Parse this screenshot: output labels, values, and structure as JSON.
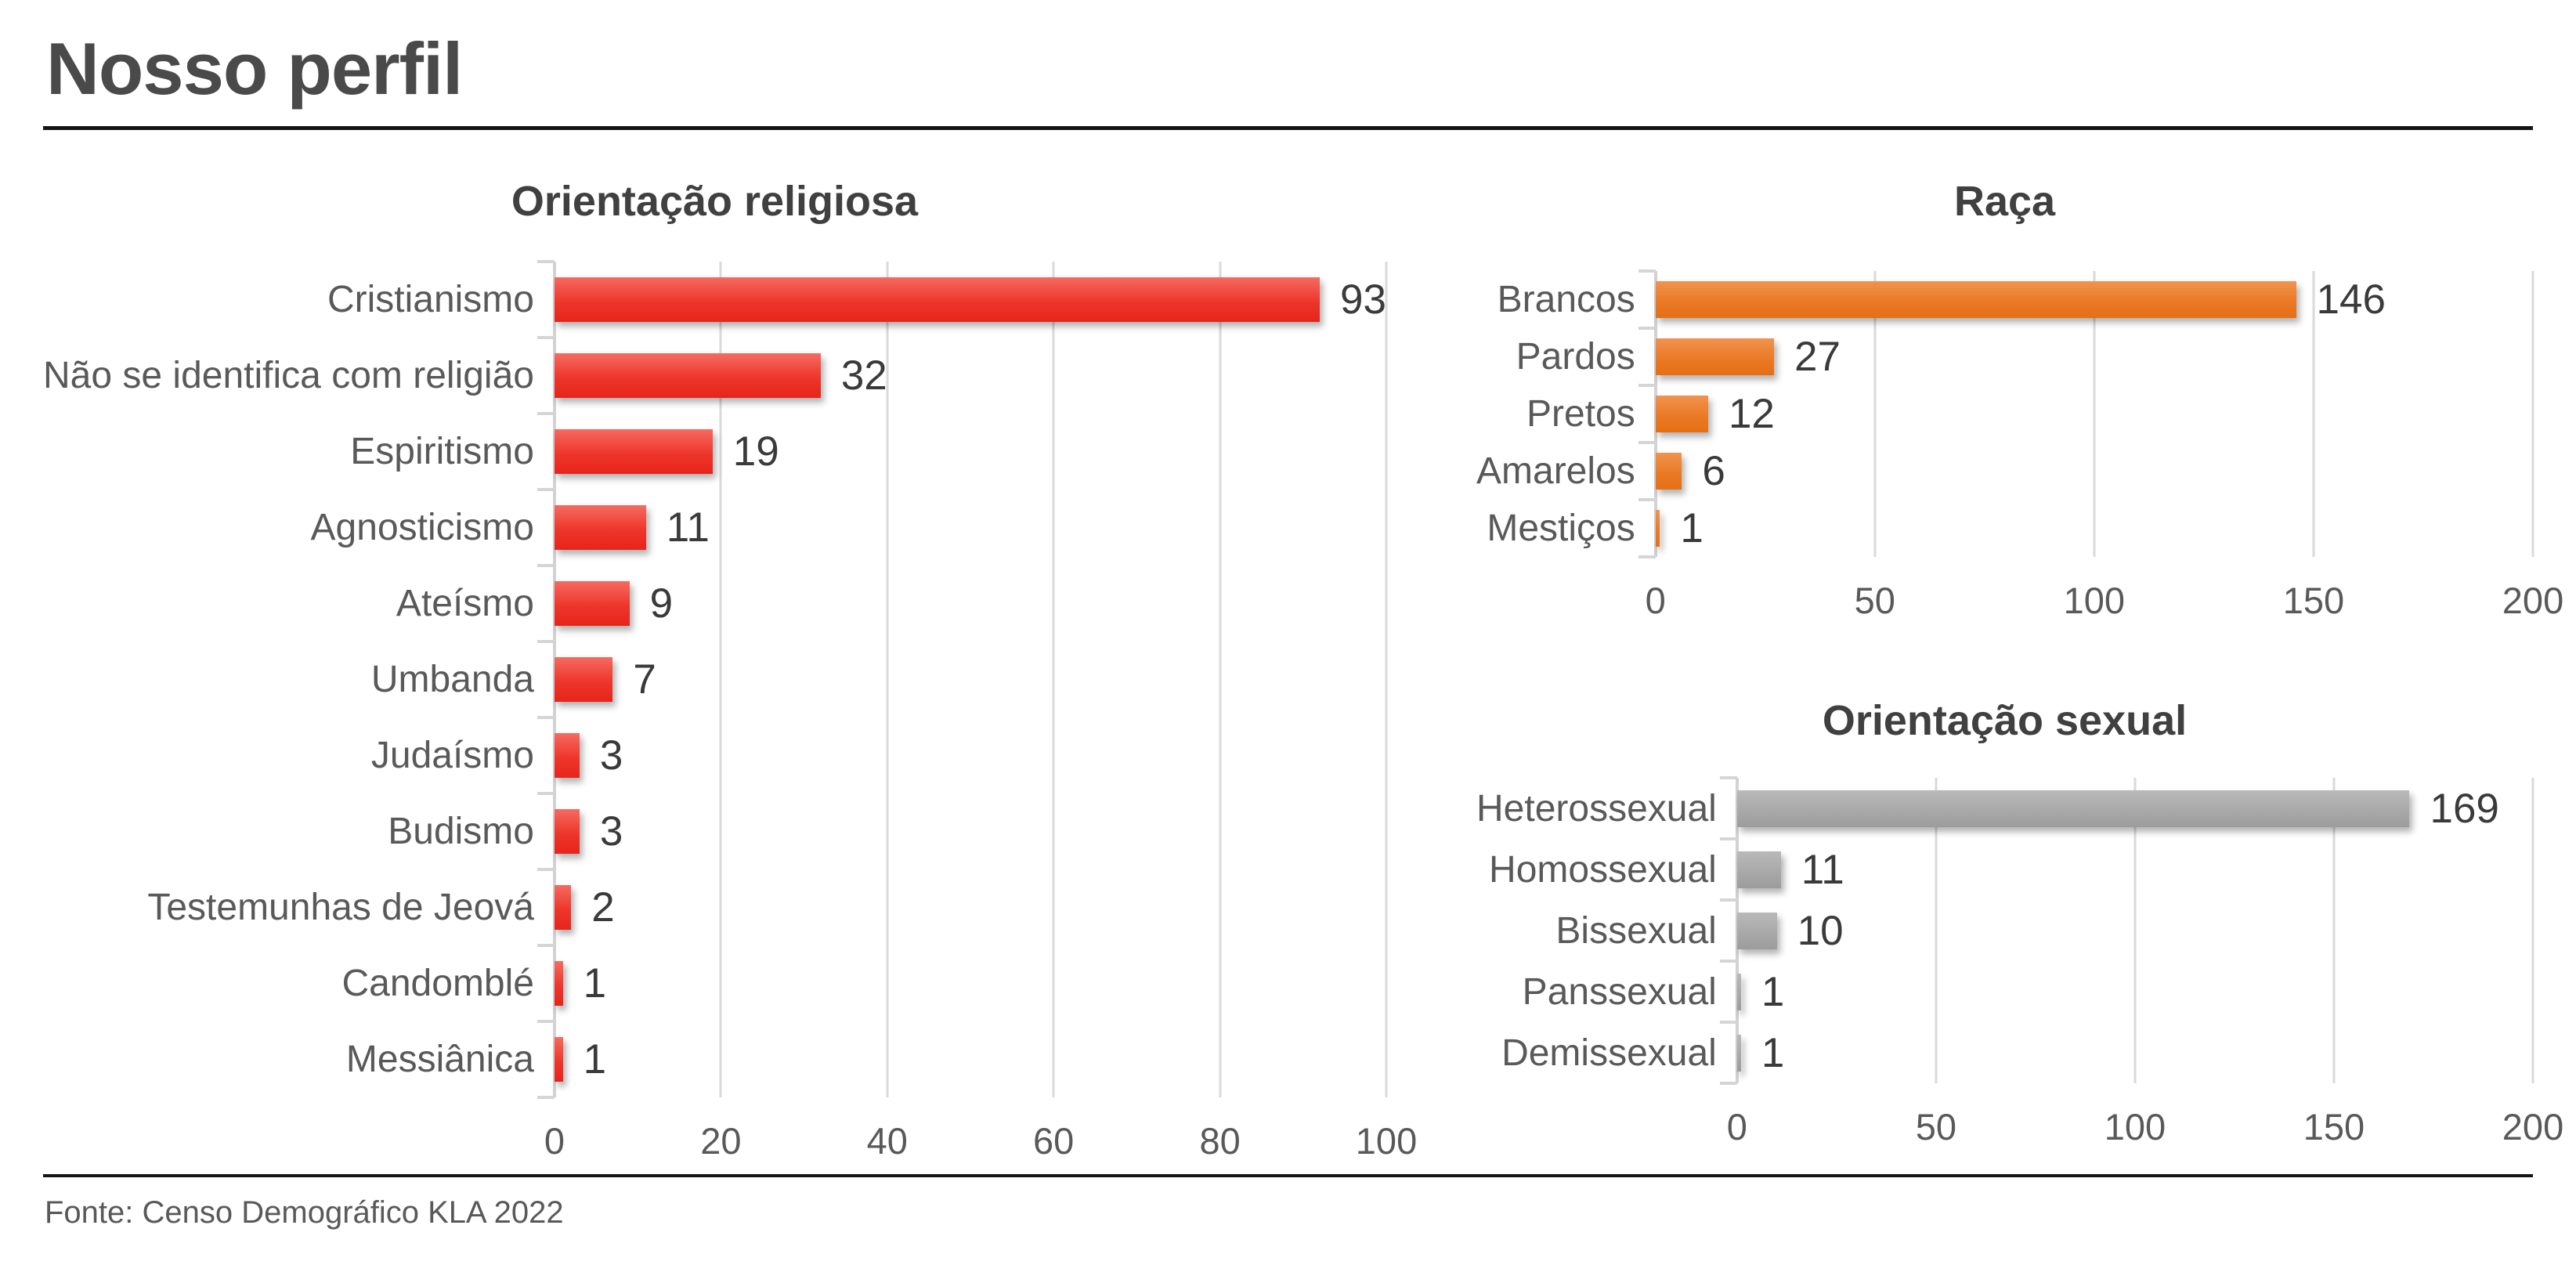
{
  "header": {
    "title": "Nosso perfil"
  },
  "footer": {
    "source": "Fonte: Censo Demográfico KLA 2022"
  },
  "colors": {
    "religion_bar": "#ED362C",
    "race_bar": "#ED7D31",
    "sexual_orientation_bar": "#A6A6A6",
    "gridline": "#D9D9D9",
    "category_text": "#595959",
    "value_text": "#3A3A3A",
    "title_text": "#404040",
    "page_title_text": "#4A4A4A"
  },
  "chart_data": [
    {
      "type": "bar",
      "orientation": "horizontal",
      "title": "Orientação religiosa",
      "categories": [
        "Cristianismo",
        "Não se identifica com religião",
        "Espiritismo",
        "Agnosticismo",
        "Ateísmo",
        "Umbanda",
        "Judaísmo",
        "Budismo",
        "Testemunhas de Jeová",
        "Candomblé",
        "Messiânica"
      ],
      "values": [
        93,
        32,
        19,
        11,
        9,
        7,
        3,
        3,
        2,
        1,
        1
      ],
      "xlim": [
        0,
        100
      ],
      "xticks": [
        0,
        20,
        40,
        60,
        80,
        100
      ],
      "bar_color": "red",
      "data_labels": true,
      "grid": true,
      "legend": "none"
    },
    {
      "type": "bar",
      "orientation": "horizontal",
      "title": "Raça",
      "categories": [
        "Brancos",
        "Pardos",
        "Pretos",
        "Amarelos",
        "Mestiços"
      ],
      "values": [
        146,
        27,
        12,
        6,
        1
      ],
      "xlim": [
        0,
        200
      ],
      "xticks": [
        0,
        50,
        100,
        150,
        200
      ],
      "bar_color": "orange",
      "data_labels": true,
      "grid": true,
      "legend": "none"
    },
    {
      "type": "bar",
      "orientation": "horizontal",
      "title": "Orientação sexual",
      "categories": [
        "Heterossexual",
        "Homossexual",
        "Bissexual",
        "Panssexual",
        "Demissexual"
      ],
      "values": [
        169,
        11,
        10,
        1,
        1
      ],
      "xlim": [
        0,
        200
      ],
      "xticks": [
        0,
        50,
        100,
        150,
        200
      ],
      "bar_color": "gray",
      "data_labels": true,
      "grid": true,
      "legend": "none"
    }
  ]
}
